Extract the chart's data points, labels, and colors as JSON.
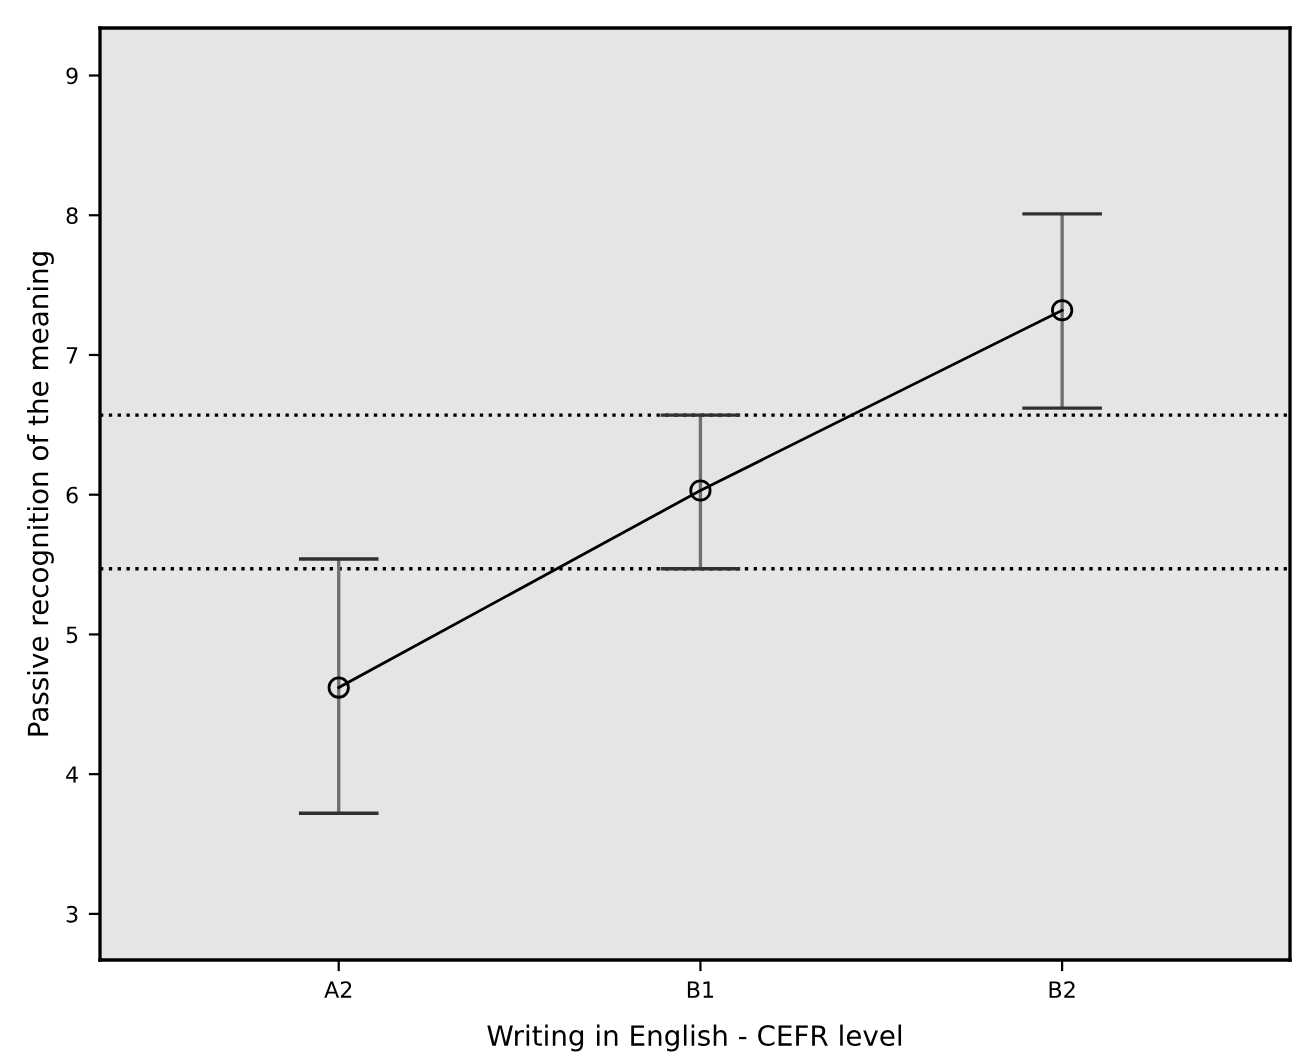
{
  "chart_data": {
    "type": "line",
    "xlabel": "Writing in English - CEFR level",
    "ylabel": "Passive recognition of the meaning",
    "categories": [
      "A2",
      "B1",
      "B2"
    ],
    "series": [
      {
        "color": "#000000",
        "values": [
          4.62,
          6.03,
          7.32
        ],
        "errors": [
          [
            3.72,
            5.54
          ],
          [
            5.47,
            6.57
          ],
          [
            6.62,
            8.01
          ]
        ]
      }
    ],
    "ylim": [
      2.67,
      9.34
    ],
    "yticks": [
      3,
      4,
      5,
      6,
      7,
      8,
      9
    ],
    "ref_lines": [
      {
        "axis": "y",
        "value": 6.57,
        "line_style": "dotted",
        "color": "#000000"
      },
      {
        "axis": "y",
        "value": 5.47,
        "line_style": "dotted",
        "color": "#000000"
      }
    ],
    "marker": "circle",
    "line_style": "solid",
    "grid": false,
    "legend": false
  }
}
